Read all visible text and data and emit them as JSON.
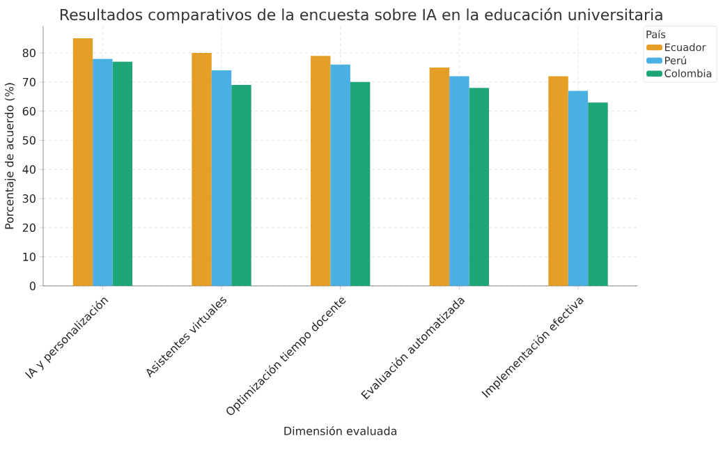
{
  "chart_data": {
    "type": "bar",
    "title": "Resultados comparativos de la encuesta sobre IA en la educación universitaria",
    "xlabel": "Dimensión evaluada",
    "ylabel": "Porcentaje de acuerdo (%)",
    "legend_title": "País",
    "categories": [
      "IA y personalización",
      "Asistentes virtuales",
      "Optimización tiempo docente",
      "Evaluación automatizada",
      "Implementación efectiva"
    ],
    "series": [
      {
        "name": "Ecuador",
        "color": "#e69f26",
        "values": [
          85,
          80,
          79,
          75,
          72
        ]
      },
      {
        "name": "Perú",
        "color": "#4ab0e4",
        "values": [
          78,
          74,
          76,
          72,
          67
        ]
      },
      {
        "name": "Colombia",
        "color": "#1ea67a",
        "values": [
          77,
          69,
          70,
          68,
          63
        ]
      }
    ],
    "ylim": [
      0,
      89.25
    ],
    "yticks": [
      0,
      10,
      20,
      30,
      40,
      50,
      60,
      70,
      80
    ],
    "grid": true,
    "legend": "top right"
  }
}
